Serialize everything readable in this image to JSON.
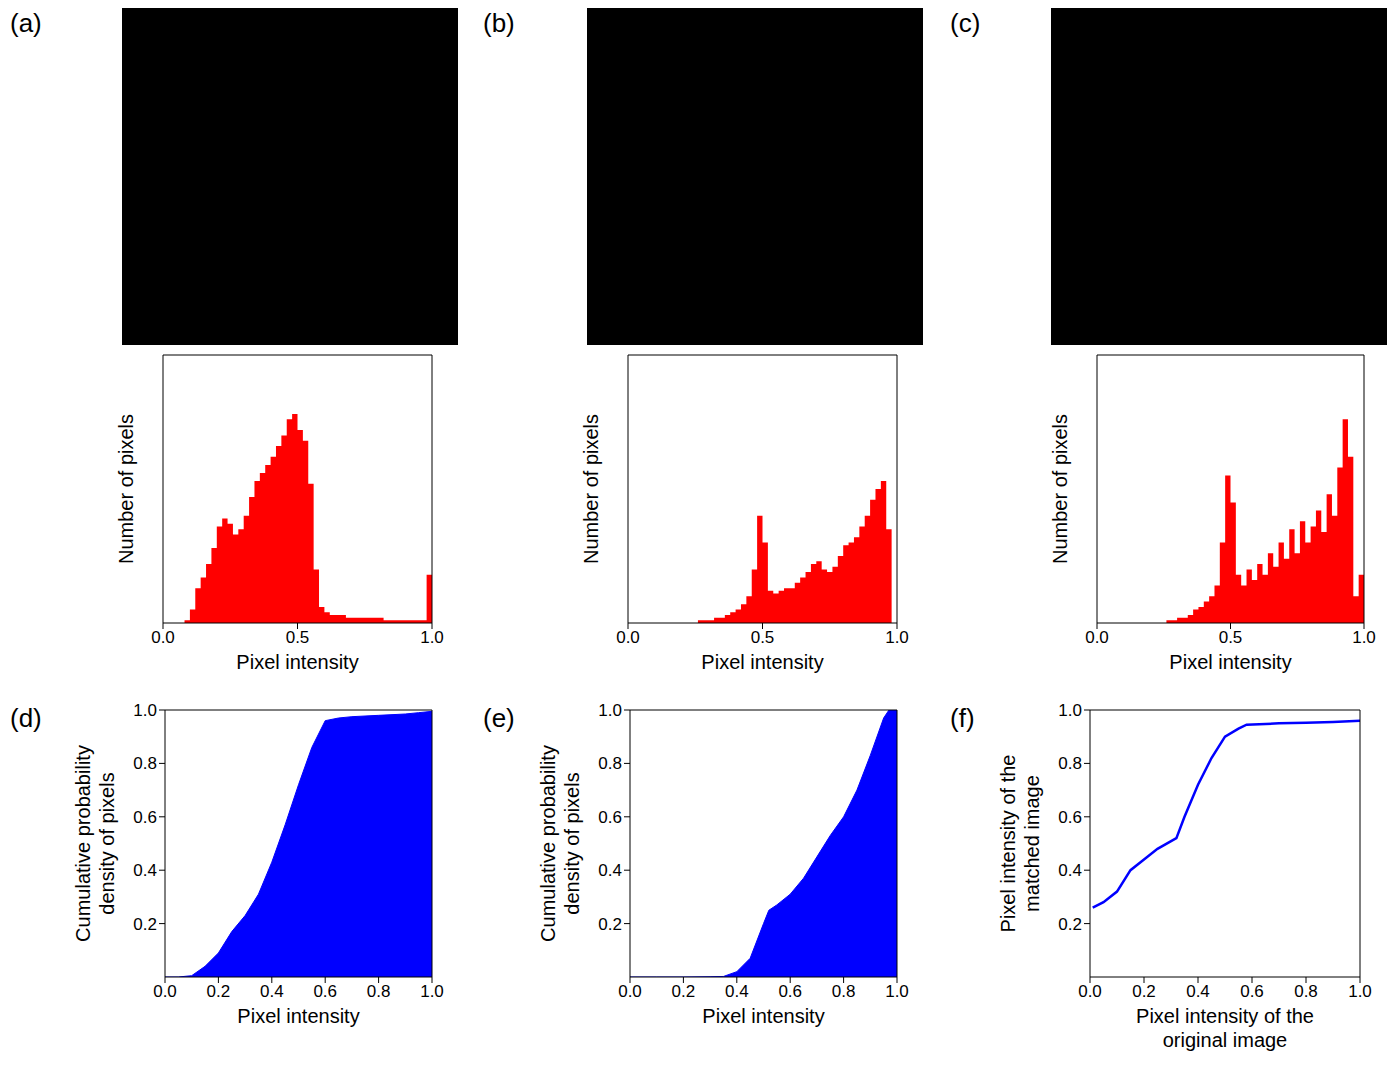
{
  "chart_data": [
    {
      "type": "histogram",
      "title": "(a)",
      "x_label": "Pixel intensity",
      "y_label": "Number of pixels",
      "color": "#ff0000",
      "bins": [
        0,
        0.02,
        0.04,
        0.06,
        0.08,
        0.1,
        0.12,
        0.14,
        0.16,
        0.18,
        0.2,
        0.22,
        0.24,
        0.26,
        0.28,
        0.3,
        0.32,
        0.34,
        0.36,
        0.38,
        0.4,
        0.42,
        0.44,
        0.46,
        0.48,
        0.5,
        0.52,
        0.54,
        0.56,
        0.58,
        0.6,
        0.62,
        0.64,
        0.66,
        0.68,
        0.7,
        0.72,
        0.74,
        0.76,
        0.78,
        0.8,
        0.82,
        0.84,
        0.86,
        0.88,
        0.9,
        0.92,
        0.94,
        0.96,
        0.98,
        1
      ],
      "counts": [
        0,
        0,
        0,
        0,
        1,
        5,
        13,
        17,
        22,
        28,
        36,
        39,
        37,
        33,
        35,
        40,
        47,
        53,
        56,
        59,
        62,
        66,
        70,
        76,
        78,
        72,
        68,
        52,
        20,
        6,
        4,
        3,
        3,
        3,
        2,
        2,
        2,
        2,
        2,
        2,
        2,
        1,
        1,
        1,
        1,
        1,
        1,
        1,
        1,
        18
      ],
      "xlim": [
        0,
        1
      ],
      "xticks": [
        {
          "value": 0,
          "label": "0.0"
        },
        0.5,
        {
          "value": 1,
          "label": "1.0"
        }
      ],
      "ylim": [
        0,
        100
      ],
      "tick_labels": "x"
    },
    {
      "type": "histogram",
      "title": "(b)",
      "x_label": "Pixel intensity",
      "y_label": "Number of pixels",
      "color": "#ff0000",
      "bins": [
        0,
        0.02,
        0.04,
        0.06,
        0.08,
        0.1,
        0.12,
        0.14,
        0.16,
        0.18,
        0.2,
        0.22,
        0.24,
        0.26,
        0.28,
        0.3,
        0.32,
        0.34,
        0.36,
        0.38,
        0.4,
        0.42,
        0.44,
        0.46,
        0.48,
        0.5,
        0.52,
        0.54,
        0.56,
        0.58,
        0.6,
        0.62,
        0.64,
        0.66,
        0.68,
        0.7,
        0.72,
        0.74,
        0.76,
        0.78,
        0.8,
        0.82,
        0.84,
        0.86,
        0.88,
        0.9,
        0.92,
        0.94,
        0.96,
        0.98,
        1
      ],
      "counts": [
        0,
        0,
        0,
        0,
        0,
        0,
        0,
        0,
        0,
        0,
        0,
        0,
        0,
        1,
        1,
        1,
        2,
        2,
        3,
        4,
        5,
        7,
        10,
        20,
        40,
        30,
        12,
        11,
        12,
        13,
        13,
        15,
        17,
        19,
        22,
        23,
        20,
        19,
        21,
        25,
        29,
        30,
        32,
        36,
        40,
        46,
        50,
        53,
        35,
        0
      ],
      "xlim": [
        0,
        1
      ],
      "xticks": [
        {
          "value": 0,
          "label": "0.0"
        },
        0.5,
        {
          "value": 1,
          "label": "1.0"
        }
      ],
      "ylim": [
        0,
        100
      ],
      "tick_labels": "x"
    },
    {
      "type": "histogram",
      "title": "(c)",
      "x_label": "Pixel intensity",
      "y_label": "Number of pixels",
      "color": "#ff0000",
      "bins": [
        0,
        0.02,
        0.04,
        0.06,
        0.08,
        0.1,
        0.12,
        0.14,
        0.16,
        0.18,
        0.2,
        0.22,
        0.24,
        0.26,
        0.28,
        0.3,
        0.32,
        0.34,
        0.36,
        0.38,
        0.4,
        0.42,
        0.44,
        0.46,
        0.48,
        0.5,
        0.52,
        0.54,
        0.56,
        0.58,
        0.6,
        0.62,
        0.64,
        0.66,
        0.68,
        0.7,
        0.72,
        0.74,
        0.76,
        0.78,
        0.8,
        0.82,
        0.84,
        0.86,
        0.88,
        0.9,
        0.92,
        0.94,
        0.96,
        0.98,
        1
      ],
      "counts": [
        0,
        0,
        0,
        0,
        0,
        0,
        0,
        0,
        0,
        0,
        0,
        0,
        0,
        1,
        1,
        2,
        2,
        3,
        5,
        6,
        8,
        10,
        14,
        30,
        55,
        45,
        18,
        14,
        20,
        16,
        22,
        18,
        26,
        21,
        30,
        24,
        35,
        26,
        38,
        30,
        36,
        42,
        34,
        48,
        40,
        58,
        76,
        62,
        10,
        18
      ],
      "xlim": [
        0,
        1
      ],
      "xticks": [
        {
          "value": 0,
          "label": "0.0"
        },
        0.5,
        {
          "value": 1,
          "label": "1.0"
        }
      ],
      "ylim": [
        0,
        100
      ],
      "tick_labels": "x"
    },
    {
      "type": "area",
      "title": "(d)",
      "x_label": "Pixel intensity",
      "y_label": "Cumulative probability density of pixels",
      "color": "#0000ff",
      "x": [
        0,
        0.05,
        0.1,
        0.15,
        0.2,
        0.25,
        0.3,
        0.35,
        0.4,
        0.45,
        0.5,
        0.55,
        0.6,
        0.65,
        0.7,
        0.8,
        0.9,
        0.95,
        1
      ],
      "values": [
        0,
        0,
        0.005,
        0.04,
        0.09,
        0.17,
        0.23,
        0.31,
        0.43,
        0.57,
        0.72,
        0.86,
        0.96,
        0.97,
        0.975,
        0.98,
        0.985,
        0.99,
        0.995
      ],
      "xlim": [
        0,
        1
      ],
      "xticks": [
        {
          "value": 0,
          "label": "0.0"
        },
        0.2,
        0.4,
        0.6,
        0.8,
        {
          "value": 1,
          "label": "1.0"
        }
      ],
      "ylim": [
        0,
        1
      ],
      "yticks": [
        0.2,
        0.4,
        0.6,
        0.8,
        {
          "value": 1,
          "label": "1.0"
        }
      ]
    },
    {
      "type": "area",
      "title": "(e)",
      "x_label": "Pixel intensity",
      "y_label": "Cumulative probability density of pixels",
      "color": "#0000ff",
      "x": [
        0,
        0.1,
        0.2,
        0.3,
        0.35,
        0.4,
        0.45,
        0.5,
        0.52,
        0.55,
        0.6,
        0.65,
        0.7,
        0.75,
        0.8,
        0.85,
        0.9,
        0.95,
        0.97,
        1
      ],
      "values": [
        0,
        0,
        0,
        0.001,
        0.002,
        0.02,
        0.07,
        0.2,
        0.25,
        0.27,
        0.31,
        0.37,
        0.45,
        0.53,
        0.6,
        0.7,
        0.83,
        0.97,
        1,
        1
      ],
      "xlim": [
        0,
        1
      ],
      "xticks": [
        {
          "value": 0,
          "label": "0.0"
        },
        0.2,
        0.4,
        0.6,
        0.8,
        {
          "value": 1,
          "label": "1.0"
        }
      ],
      "ylim": [
        0,
        1
      ],
      "yticks": [
        0.2,
        0.4,
        0.6,
        0.8,
        {
          "value": 1,
          "label": "1.0"
        }
      ]
    },
    {
      "type": "line",
      "title": "(f)",
      "x_label": "Pixel intensity of the original image",
      "y_label": "Pixel intensity of the matched image",
      "color": "#0000ff",
      "x": [
        0.01,
        0.05,
        0.1,
        0.15,
        0.2,
        0.25,
        0.32,
        0.35,
        0.4,
        0.45,
        0.5,
        0.55,
        0.58,
        0.7,
        0.8,
        0.9,
        1
      ],
      "values": [
        0.26,
        0.28,
        0.32,
        0.4,
        0.44,
        0.48,
        0.52,
        0.6,
        0.72,
        0.82,
        0.9,
        0.93,
        0.945,
        0.95,
        0.952,
        0.955,
        0.96
      ],
      "xlim": [
        0,
        1
      ],
      "xticks": [
        {
          "value": 0,
          "label": "0.0"
        },
        0.2,
        0.4,
        0.6,
        0.8,
        {
          "value": 1,
          "label": "1.0"
        }
      ],
      "ylim": [
        0,
        1
      ],
      "yticks": [
        0.2,
        0.4,
        0.6,
        0.8,
        {
          "value": 1,
          "label": "1.0"
        }
      ]
    }
  ]
}
